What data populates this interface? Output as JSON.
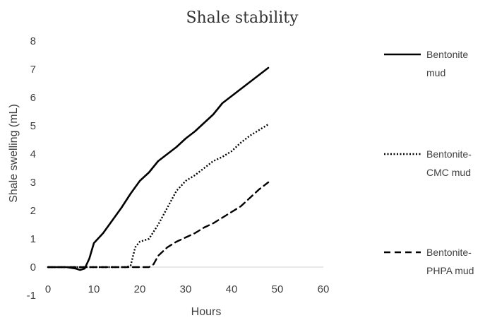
{
  "chart_data": {
    "type": "line",
    "title": "Shale stability",
    "xlabel": "Hours",
    "ylabel": "Shale swelling (mL)",
    "xlim": [
      0,
      60
    ],
    "ylim": [
      -1,
      8
    ],
    "xticks": [
      0,
      10,
      20,
      30,
      40,
      50,
      60
    ],
    "yticks": [
      -1,
      0,
      1,
      2,
      3,
      4,
      5,
      6,
      7,
      8
    ],
    "grid": false,
    "legend": "right",
    "series": [
      {
        "name_lines": [
          "Bentonite",
          "mud"
        ],
        "style": "solid",
        "color": "#000000",
        "x": [
          0,
          2,
          4,
          6,
          7,
          8,
          9,
          10,
          12,
          14,
          16,
          18,
          20,
          22,
          24,
          26,
          28,
          30,
          32,
          34,
          36,
          38,
          40,
          42,
          44,
          46,
          48
        ],
        "y": [
          0,
          0,
          0,
          -0.05,
          -0.1,
          -0.05,
          0.3,
          0.85,
          1.2,
          1.65,
          2.1,
          2.6,
          3.05,
          3.35,
          3.75,
          4.0,
          4.25,
          4.55,
          4.8,
          5.1,
          5.4,
          5.8,
          6.05,
          6.3,
          6.55,
          6.8,
          7.05
        ]
      },
      {
        "name_lines": [
          "Bentonite-",
          "CMC mud"
        ],
        "style": "dotted",
        "color": "#000000",
        "x": [
          0,
          5,
          10,
          15,
          17,
          18,
          19,
          20,
          22,
          24,
          26,
          28,
          30,
          32,
          34,
          36,
          38,
          40,
          42,
          44,
          46,
          48
        ],
        "y": [
          0,
          0,
          0,
          0,
          0,
          0.05,
          0.7,
          0.9,
          1.0,
          1.5,
          2.1,
          2.7,
          3.05,
          3.25,
          3.5,
          3.75,
          3.9,
          4.1,
          4.4,
          4.65,
          4.85,
          5.05
        ]
      },
      {
        "name_lines": [
          "Bentonite-",
          "PHPA mud"
        ],
        "style": "dashed",
        "color": "#000000",
        "x": [
          0,
          5,
          10,
          15,
          20,
          22,
          23,
          24,
          26,
          28,
          30,
          32,
          34,
          36,
          38,
          40,
          42,
          44,
          46,
          48
        ],
        "y": [
          0,
          0,
          0,
          0,
          0,
          0,
          0.1,
          0.4,
          0.7,
          0.9,
          1.05,
          1.2,
          1.4,
          1.55,
          1.75,
          1.95,
          2.15,
          2.45,
          2.75,
          3.0
        ]
      }
    ]
  }
}
